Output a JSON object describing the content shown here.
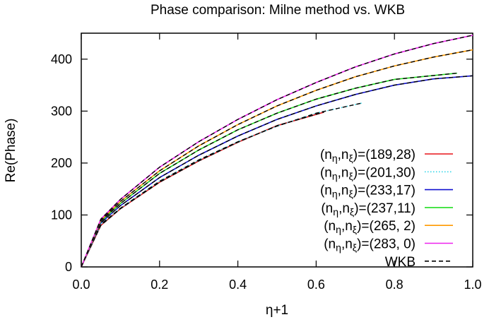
{
  "chart_data": {
    "type": "line",
    "title": "Phase comparison: Milne method vs. WKB",
    "xlabel": "η+1",
    "ylabel": "Re(Phase)",
    "xlim": [
      0.0,
      1.0
    ],
    "ylim": [
      0,
      450
    ],
    "xticks": [
      "0.0",
      "0.2",
      "0.4",
      "0.6",
      "0.8",
      "1.0"
    ],
    "yticks": [
      "0",
      "100",
      "200",
      "300",
      "400"
    ],
    "grid": false,
    "legend_position": "bottom-right",
    "series": [
      {
        "name": "(189,28)",
        "color": "#e8141a",
        "dash": "solid",
        "x": [
          0.0,
          0.05,
          0.1,
          0.2,
          0.3,
          0.4,
          0.5,
          0.62
        ],
        "y": [
          0,
          80,
          112,
          163,
          204,
          240,
          272,
          298
        ]
      },
      {
        "name": "(201,30)",
        "color": "#33d6e8",
        "dash": "dotted",
        "x": [
          0.0,
          0.05,
          0.1,
          0.2,
          0.3,
          0.4,
          0.5,
          0.6,
          0.72
        ],
        "y": [
          0,
          82,
          113,
          165,
          206,
          241,
          271,
          296,
          316
        ]
      },
      {
        "name": "(233,17)",
        "color": "#1010d0",
        "dash": "solid",
        "x": [
          0.0,
          0.05,
          0.1,
          0.2,
          0.3,
          0.4,
          0.5,
          0.6,
          0.7,
          0.8,
          0.9,
          1.0
        ],
        "y": [
          0,
          85,
          118,
          172,
          215,
          252,
          284,
          310,
          332,
          350,
          362,
          368
        ]
      },
      {
        "name": "(237,11)",
        "color": "#22dd22",
        "dash": "solid",
        "x": [
          0.0,
          0.05,
          0.1,
          0.2,
          0.3,
          0.4,
          0.5,
          0.6,
          0.7,
          0.8,
          0.96
        ],
        "y": [
          0,
          88,
          122,
          180,
          225,
          264,
          296,
          323,
          344,
          361,
          373
        ]
      },
      {
        "name": "(265,  2)",
        "color": "#ff9900",
        "dash": "solid",
        "x": [
          0.0,
          0.05,
          0.1,
          0.2,
          0.3,
          0.4,
          0.5,
          0.6,
          0.7,
          0.8,
          0.9,
          1.0
        ],
        "y": [
          0,
          90,
          126,
          185,
          233,
          274,
          310,
          340,
          366,
          387,
          404,
          418
        ]
      },
      {
        "name": "(283,  0)",
        "color": "#ee22ee",
        "dash": "solid",
        "x": [
          0.0,
          0.05,
          0.1,
          0.2,
          0.3,
          0.4,
          0.5,
          0.6,
          0.7,
          0.8,
          0.9,
          1.0
        ],
        "y": [
          0,
          92,
          130,
          192,
          241,
          284,
          322,
          355,
          385,
          410,
          430,
          446
        ]
      },
      {
        "name": "WKB",
        "color": "#000000",
        "dash": "dashed"
      }
    ]
  }
}
